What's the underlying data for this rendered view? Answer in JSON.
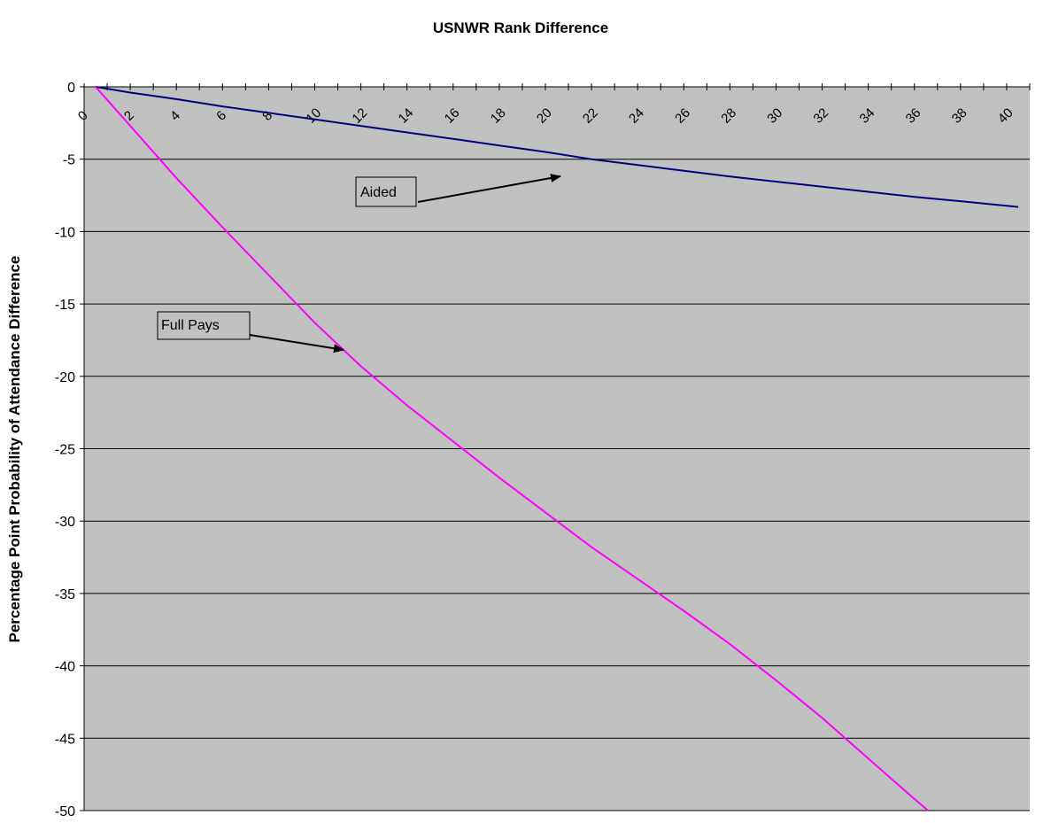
{
  "chart_data": {
    "type": "line",
    "title": "USNWR Rank Difference",
    "xlabel": "",
    "ylabel": "Percentage Point Probability of Attendance Difference",
    "xlim": [
      0,
      41
    ],
    "ylim": [
      -50,
      0
    ],
    "x_ticks": [
      0,
      2,
      4,
      6,
      8,
      10,
      12,
      14,
      16,
      18,
      20,
      22,
      24,
      26,
      28,
      30,
      32,
      34,
      36,
      38,
      40
    ],
    "y_ticks": [
      0,
      -5,
      -10,
      -15,
      -20,
      -25,
      -30,
      -35,
      -40,
      -45,
      -50
    ],
    "grid": "horizontal",
    "x_axis_position": "top",
    "series": [
      {
        "name": "Aided",
        "color": "#000080",
        "x": [
          0.5,
          2,
          4,
          6,
          8,
          10,
          12,
          14,
          16,
          18,
          20,
          22,
          24,
          26,
          28,
          30,
          32,
          34,
          36,
          38,
          40.5
        ],
        "y": [
          0,
          -0.4,
          -0.85,
          -1.35,
          -1.8,
          -2.25,
          -2.7,
          -3.15,
          -3.6,
          -4.05,
          -4.5,
          -5.0,
          -5.4,
          -5.8,
          -6.2,
          -6.55,
          -6.9,
          -7.25,
          -7.6,
          -7.9,
          -8.3
        ]
      },
      {
        "name": "Full Pays",
        "color": "#ff00ff",
        "x": [
          0.5,
          2,
          4,
          6,
          8,
          10,
          12,
          14,
          16,
          18,
          20,
          22,
          24,
          26,
          28,
          30,
          32,
          34,
          36,
          36.6
        ],
        "y": [
          0,
          -2.7,
          -6.3,
          -9.7,
          -13.0,
          -16.3,
          -19.3,
          -22.0,
          -24.5,
          -27.0,
          -29.4,
          -31.8,
          -34.0,
          -36.2,
          -38.5,
          -41.0,
          -43.6,
          -46.4,
          -49.2,
          -50
        ]
      }
    ],
    "annotations": [
      {
        "text": "Aided",
        "target_x": 20.5,
        "target_y": -6.1
      },
      {
        "text": "Full Pays",
        "target_x": 11.5,
        "target_y": -18
      }
    ]
  }
}
